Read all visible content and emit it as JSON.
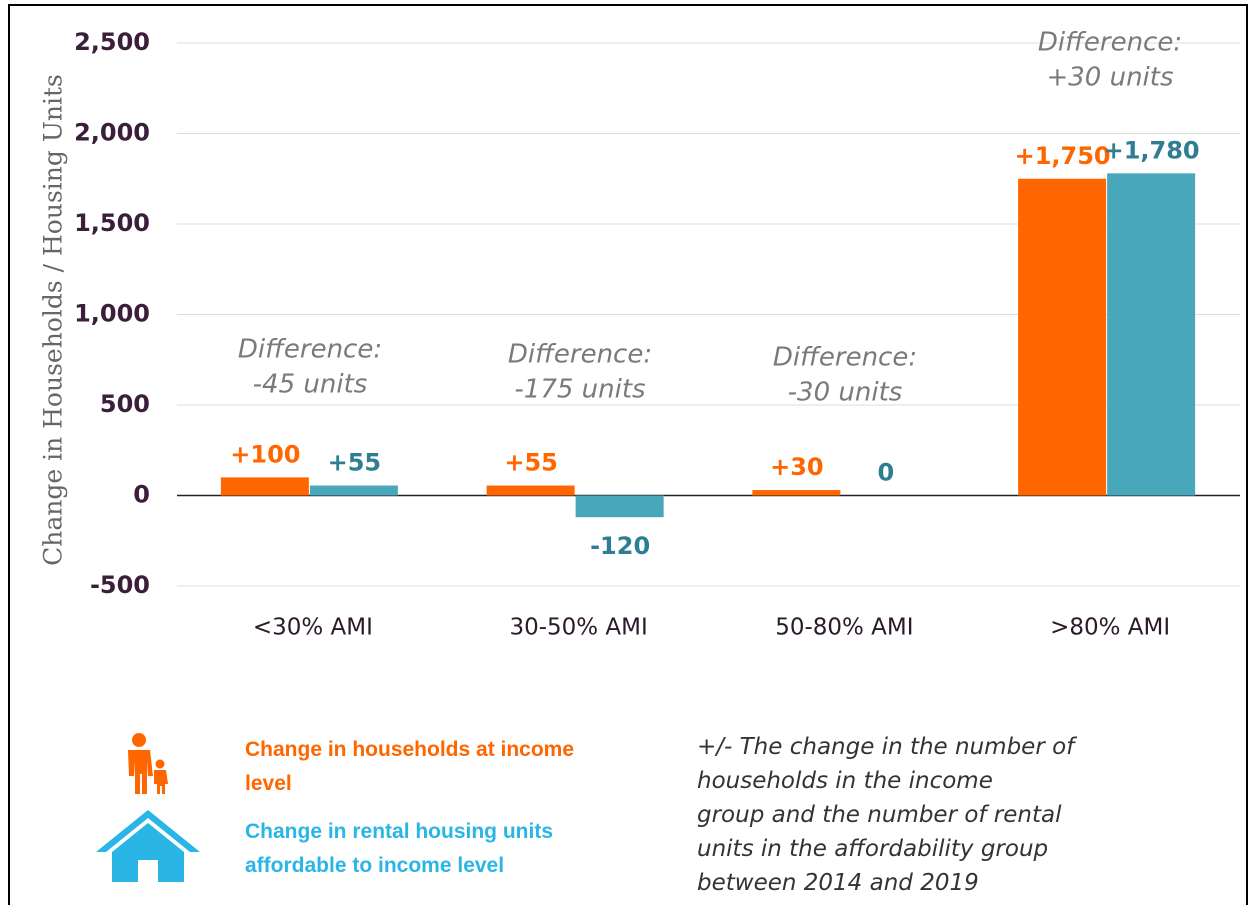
{
  "chart_data": {
    "type": "bar",
    "y_axis_label": "Change in Households / Housing Units",
    "categories": [
      "<30% AMI",
      "30-50% AMI",
      "50-80% AMI",
      ">80% AMI"
    ],
    "series": [
      {
        "name": "Change in households at income level",
        "color": "#ff6600",
        "values": [
          100,
          55,
          30,
          1750
        ],
        "value_labels": [
          "+100",
          "+55",
          "+30",
          "+1,750"
        ]
      },
      {
        "name": "Change in rental housing units affordable to income level",
        "color": "#48a7bb",
        "legend_color": "#29b6e6",
        "values": [
          55,
          -120,
          0,
          1780
        ],
        "value_labels": [
          "+55",
          "-120",
          "0",
          "+1,780"
        ]
      }
    ],
    "ylim": [
      -500,
      2500
    ],
    "yticks": [
      -500,
      0,
      500,
      {
        "value": 1000,
        "label": "1,000"
      },
      {
        "value": 1500,
        "label": "1,500"
      },
      {
        "value": 2000,
        "label": "2,000"
      },
      {
        "value": 2500,
        "label": "2,500"
      }
    ],
    "grid": true,
    "annotations": [
      [
        "Difference:",
        "-45 units"
      ],
      [
        "Difference:",
        "-175 units"
      ],
      [
        "Difference:",
        "-30 units"
      ],
      [
        "Difference:",
        "+30 units"
      ]
    ],
    "note": [
      "+/- The change in the number of",
      "households in the income",
      "group and the number of rental",
      "units in the affordability group",
      "between 2014 and 2019"
    ]
  }
}
